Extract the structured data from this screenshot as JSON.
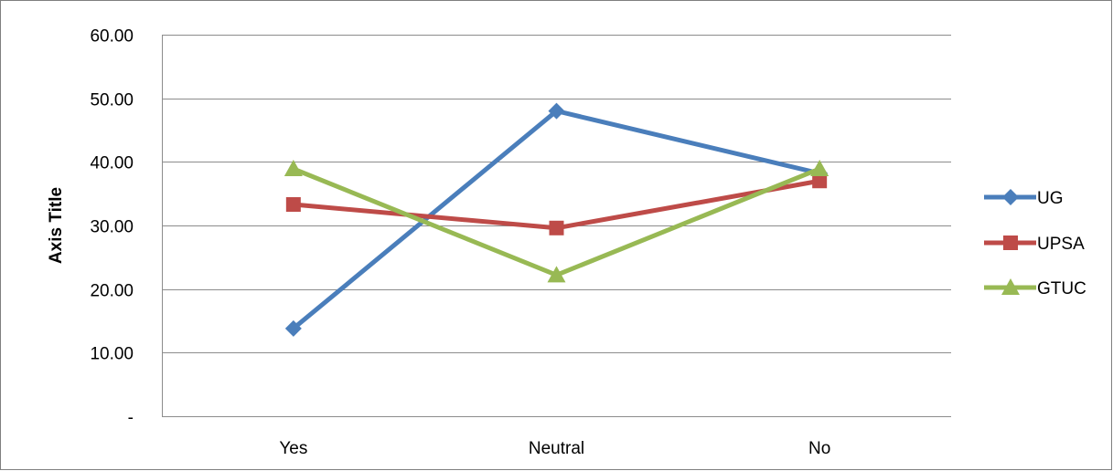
{
  "chart_data": {
    "type": "line",
    "title": "",
    "xlabel": "",
    "ylabel": "Axis Title",
    "categories": [
      "Yes",
      "Neutral",
      "No"
    ],
    "ylim": [
      0,
      60
    ],
    "ytick_values": [
      0,
      10,
      20,
      30,
      40,
      50,
      60
    ],
    "ytick_labels": [
      "-",
      "10.00",
      "20.00",
      "30.00",
      "40.00",
      "50.00",
      "60.00"
    ],
    "grid": true,
    "legend_position": "right",
    "series": [
      {
        "name": "UG",
        "color": "#4a7ebb",
        "marker": "diamond",
        "values": [
          13.8,
          48.0,
          38.2
        ]
      },
      {
        "name": "UPSA",
        "color": "#be4b48",
        "marker": "square",
        "values": [
          33.3,
          29.6,
          37.0
        ]
      },
      {
        "name": "GTUC",
        "color": "#98b954",
        "marker": "triangle",
        "values": [
          38.9,
          22.2,
          38.9
        ]
      }
    ]
  }
}
